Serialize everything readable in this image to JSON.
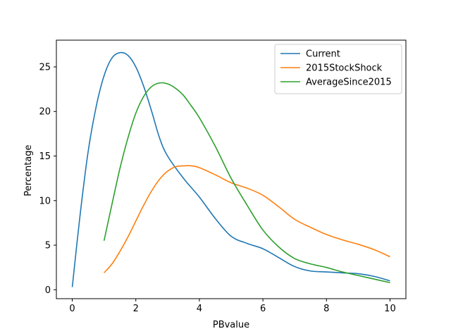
{
  "chart_data": {
    "type": "line",
    "title": "",
    "xlabel": "PBvalue",
    "ylabel": "Percentage",
    "xlim": [
      -0.5,
      10.5
    ],
    "ylim": [
      -1.0,
      28.0
    ],
    "xticks": [
      0,
      2,
      4,
      6,
      8,
      10
    ],
    "yticks": [
      0,
      5,
      10,
      15,
      20,
      25
    ],
    "grid": false,
    "legend_position": "top-right",
    "series": [
      {
        "name": "Current",
        "color": "#1f77b4",
        "x": [
          0,
          0.25,
          0.5,
          0.75,
          1.0,
          1.25,
          1.5,
          1.75,
          2.0,
          2.25,
          2.5,
          2.75,
          3.0,
          3.5,
          4.0,
          4.5,
          5.0,
          5.5,
          6.0,
          6.5,
          7.0,
          7.5,
          8.0,
          8.5,
          9.0,
          9.5,
          10.0
        ],
        "y": [
          0.3,
          8.5,
          15.5,
          20.5,
          24.0,
          26.0,
          26.6,
          26.3,
          25.0,
          22.8,
          20.0,
          17.0,
          15.0,
          12.5,
          10.4,
          8.0,
          6.0,
          5.2,
          4.6,
          3.6,
          2.6,
          2.1,
          2.0,
          1.9,
          1.8,
          1.5,
          1.0
        ]
      },
      {
        "name": "2015StockShock",
        "color": "#ff7f0e",
        "x": [
          1.0,
          1.25,
          1.5,
          1.75,
          2.0,
          2.25,
          2.5,
          2.75,
          3.0,
          3.25,
          3.5,
          3.75,
          4.0,
          4.5,
          5.0,
          5.5,
          6.0,
          6.5,
          7.0,
          7.5,
          8.0,
          8.5,
          9.0,
          9.5,
          10.0
        ],
        "y": [
          1.9,
          2.9,
          4.3,
          5.9,
          7.7,
          9.5,
          11.1,
          12.4,
          13.3,
          13.8,
          13.9,
          13.9,
          13.7,
          12.9,
          12.0,
          11.4,
          10.6,
          9.3,
          7.9,
          7.0,
          6.2,
          5.6,
          5.1,
          4.5,
          3.7
        ]
      },
      {
        "name": "AverageSince2015",
        "color": "#2ca02c",
        "x": [
          1.0,
          1.25,
          1.5,
          1.75,
          2.0,
          2.25,
          2.5,
          2.75,
          3.0,
          3.25,
          3.5,
          3.75,
          4.0,
          4.5,
          5.0,
          5.5,
          6.0,
          6.5,
          7.0,
          7.5,
          8.0,
          8.5,
          9.0,
          9.5,
          10.0
        ],
        "y": [
          5.5,
          9.6,
          13.6,
          17.0,
          19.8,
          21.7,
          22.8,
          23.2,
          23.1,
          22.6,
          21.8,
          20.6,
          19.3,
          16.1,
          12.5,
          9.5,
          6.7,
          4.8,
          3.5,
          2.9,
          2.5,
          2.0,
          1.6,
          1.2,
          0.8
        ]
      }
    ]
  }
}
